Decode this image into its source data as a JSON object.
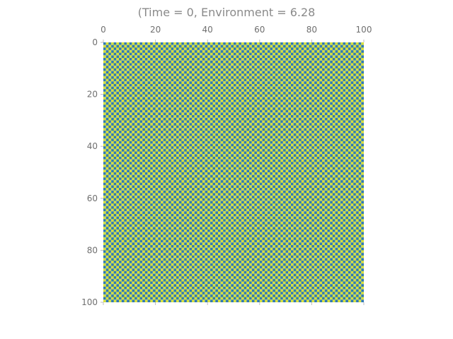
{
  "chart_data": {
    "type": "heatmap",
    "title": "(Time = 0, Environment = 6.28",
    "xlabel": "",
    "ylabel": "",
    "grid_size": 100,
    "pattern": "checkerboard",
    "cell_values": [
      0,
      1
    ],
    "colors": {
      "0": "#2f79b6",
      "1": "#d8e13a"
    },
    "xlim": [
      0,
      100
    ],
    "ylim": [
      100,
      0
    ],
    "x_ticks": [
      0,
      20,
      40,
      60,
      80,
      100
    ],
    "y_ticks": [
      0,
      20,
      40,
      60,
      80,
      100
    ],
    "x_tick_labels": [
      "0",
      "20",
      "40",
      "60",
      "80",
      "100"
    ],
    "y_tick_labels": [
      "0",
      "20",
      "40",
      "60",
      "80",
      "100"
    ],
    "x_axis_position": "top",
    "grid": false,
    "legend": "none"
  }
}
